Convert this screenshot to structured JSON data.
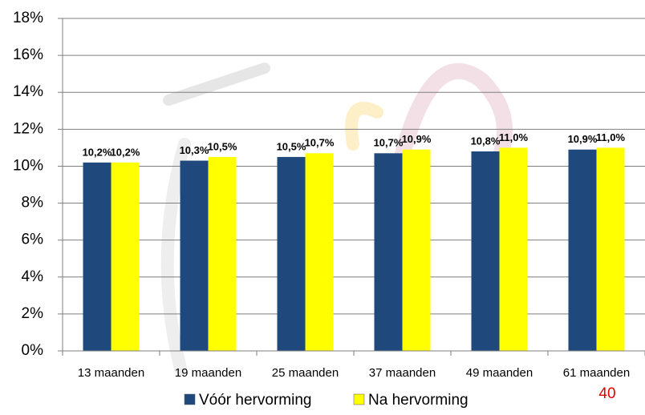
{
  "chart_data": {
    "type": "bar",
    "categories": [
      "13 maanden",
      "19 maanden",
      "25 maanden",
      "37 maanden",
      "49 maanden",
      "61 maanden"
    ],
    "series": [
      {
        "name": "Vóór hervorming",
        "color": "#1f497d",
        "values": [
          10.2,
          10.3,
          10.5,
          10.7,
          10.8,
          10.9
        ],
        "value_labels": [
          "10,2%",
          "10,3%",
          "10,5%",
          "10,7%",
          "10,8%",
          "10,9%"
        ]
      },
      {
        "name": "Na hervorming",
        "color": "#ffff00",
        "values": [
          10.2,
          10.5,
          10.7,
          10.9,
          11.0,
          11.0
        ],
        "value_labels": [
          "10,2%",
          "10,5%",
          "10,7%",
          "10,9%",
          "11,0%",
          "11,0%"
        ]
      }
    ],
    "ylim": [
      0,
      18
    ],
    "yticks": [
      {
        "value": 0,
        "label": "0%"
      },
      {
        "value": 2,
        "label": "2%"
      },
      {
        "value": 4,
        "label": "4%"
      },
      {
        "value": 6,
        "label": "6%"
      },
      {
        "value": 8,
        "label": "8%"
      },
      {
        "value": 10,
        "label": "10%"
      },
      {
        "value": 12,
        "label": "12%"
      },
      {
        "value": 14,
        "label": "14%"
      },
      {
        "value": 16,
        "label": "16%"
      },
      {
        "value": 18,
        "label": "18%"
      }
    ],
    "grid": true,
    "legend": "bottom"
  },
  "page_number": "40"
}
